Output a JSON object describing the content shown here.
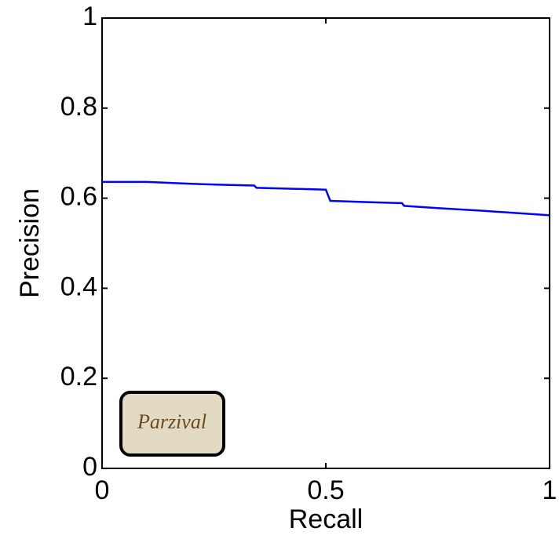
{
  "chart_data": {
    "type": "line",
    "x_label": "Recall",
    "y_label": "Precision",
    "inset_label": "Parzival",
    "x": [
      0,
      0.1,
      0.2,
      0.26,
      0.34,
      0.345,
      0.5,
      0.51,
      0.6,
      0.67,
      0.675,
      0.75,
      0.85,
      1
    ],
    "series": [
      {
        "color": "#0000ff",
        "values": [
          0.636,
          0.636,
          0.632,
          0.63,
          0.628,
          0.623,
          0.619,
          0.594,
          0.591,
          0.589,
          0.583,
          0.578,
          0.572,
          0.562
        ]
      }
    ],
    "xlim": [
      0,
      1
    ],
    "xticks": [
      0,
      0.5,
      1
    ],
    "ylim": [
      0,
      1
    ],
    "yticks": [
      0,
      0.2,
      0.4,
      0.6,
      0.8,
      1
    ]
  }
}
